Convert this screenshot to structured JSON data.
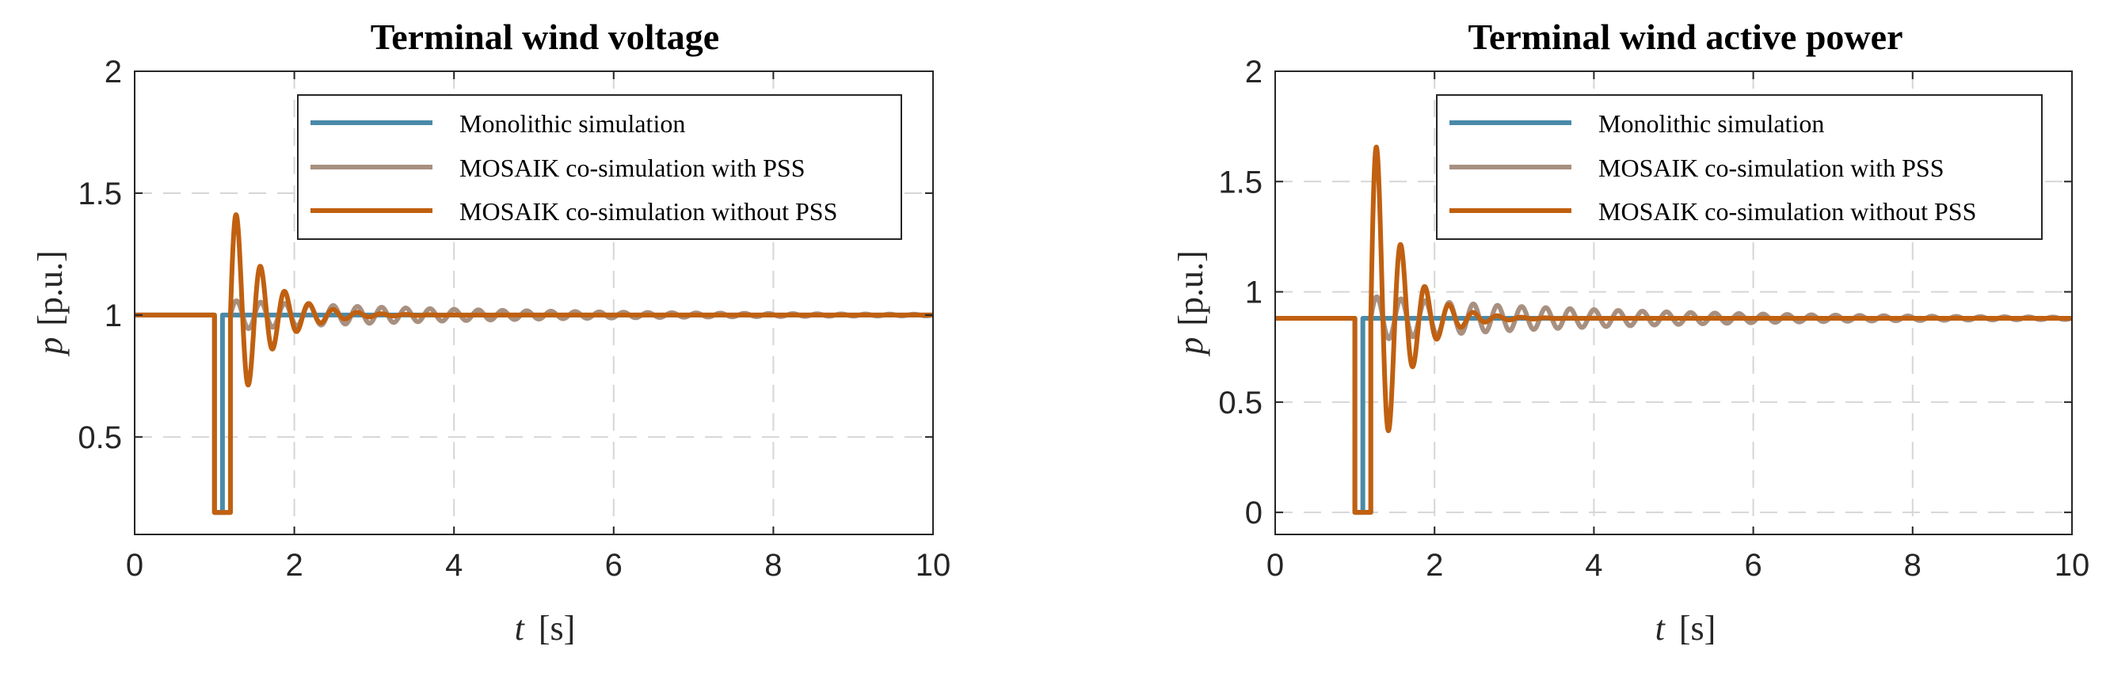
{
  "chart_data": [
    {
      "type": "line",
      "title": "Terminal wind voltage",
      "xlabel_var": "t",
      "xlabel_unit": "[s]",
      "ylabel_var": "p",
      "ylabel_unit": "[p.u.]",
      "xlim": [
        0,
        10
      ],
      "ylim": [
        0.1,
        2
      ],
      "xticks": [
        0,
        2,
        4,
        6,
        8,
        10
      ],
      "yticks": [
        0.5,
        1,
        1.5,
        2
      ],
      "ytick_labels": [
        "0.5",
        "1",
        "1.5",
        "2"
      ],
      "grid": true,
      "legend_position": "top-right",
      "series": [
        {
          "name": "Monolithic simulation",
          "color": "#4a8aa8",
          "model": {
            "steady": 1.0,
            "fault_start": 1.0,
            "fault_end": 1.1,
            "fault_value": 0.19,
            "amp": 0.0,
            "decay": 1.0,
            "freq": 3.3
          }
        },
        {
          "name": "MOSAIK co-simulation with PSS",
          "color": "#a89080",
          "model": {
            "steady": 1.0,
            "fault_start": 1.0,
            "fault_end": 1.2,
            "fault_value": 0.19,
            "amp": 0.06,
            "decay": 3.0,
            "freq": 3.3
          }
        },
        {
          "name": "MOSAIK co-simulation without PSS",
          "color": "#c06010",
          "model": {
            "steady": 1.0,
            "fault_start": 1.0,
            "fault_end": 1.2,
            "fault_value": 0.19,
            "amp": 0.49,
            "decay": 0.42,
            "freq": 3.3
          }
        }
      ]
    },
    {
      "type": "line",
      "title": "Terminal wind active power",
      "xlabel_var": "t",
      "xlabel_unit": "[s]",
      "ylabel_var": "p",
      "ylabel_unit": "[p.u.]",
      "xlim": [
        0,
        10
      ],
      "ylim": [
        -0.1,
        2
      ],
      "xticks": [
        0,
        2,
        4,
        6,
        8,
        10
      ],
      "yticks": [
        0,
        0.5,
        1,
        1.5,
        2
      ],
      "ytick_labels": [
        "0",
        "0.5",
        "1",
        "1.5",
        "2"
      ],
      "grid": true,
      "legend_position": "top-right",
      "series": [
        {
          "name": "Monolithic simulation",
          "color": "#4a8aa8",
          "model": {
            "steady": 0.88,
            "fault_start": 1.0,
            "fault_end": 1.1,
            "fault_value": 0.0,
            "amp": 0.0,
            "decay": 1.0,
            "freq": 3.3
          }
        },
        {
          "name": "MOSAIK co-simulation with PSS",
          "color": "#a89080",
          "model": {
            "steady": 0.88,
            "fault_start": 1.0,
            "fault_end": 1.2,
            "fault_value": 0.0,
            "amp": 0.1,
            "decay": 3.0,
            "freq": 3.3
          }
        },
        {
          "name": "MOSAIK co-simulation without PSS",
          "color": "#c06010",
          "model": {
            "steady": 0.88,
            "fault_start": 1.0,
            "fault_end": 1.2,
            "fault_value": 0.0,
            "amp": 0.95,
            "decay": 0.36,
            "freq": 3.3
          }
        }
      ]
    }
  ]
}
